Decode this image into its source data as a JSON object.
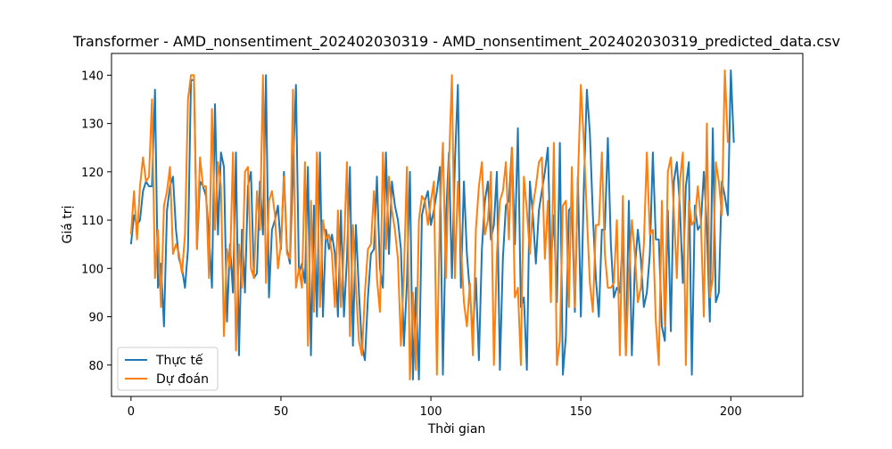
{
  "chart_data": {
    "type": "line",
    "title": "Transformer - AMD_nonsentiment_202402030319 - AMD_nonsentiment_202402030319_predicted_data.csv",
    "xlabel": "Thời gian",
    "ylabel": "Giá trị",
    "xlim": [
      -6.5,
      224
    ],
    "ylim": [
      73.5,
      144.5
    ],
    "xticks": [
      0,
      50,
      100,
      150,
      200
    ],
    "yticks": [
      80,
      90,
      100,
      110,
      120,
      130,
      140
    ],
    "grid": false,
    "legend_position": "bottom-left",
    "series": [
      {
        "name": "Thực tế",
        "color": "#1f77b4",
        "values": [
          105,
          111,
          109,
          110,
          116,
          118,
          117,
          117,
          137,
          96,
          101,
          88,
          112,
          117,
          119,
          108,
          102,
          100,
          96,
          104,
          139,
          139,
          104,
          118,
          117,
          115,
          107,
          96,
          134,
          107,
          124,
          121,
          89,
          105,
          95,
          124,
          82,
          108,
          95,
          117,
          120,
          98,
          99,
          118,
          107,
          140,
          94,
          108,
          110,
          113,
          104,
          120,
          104,
          101,
          120,
          138,
          99,
          101,
          97,
          121,
          82,
          113,
          90,
          124,
          90,
          108,
          104,
          107,
          103,
          90,
          112,
          90,
          102,
          121,
          84,
          109,
          95,
          84,
          81,
          94,
          103,
          104,
          119,
          100,
          96,
          124,
          103,
          118,
          113,
          110,
          104,
          84,
          97,
          120,
          77,
          96,
          77,
          111,
          114,
          116,
          109,
          112,
          116,
          121,
          78,
          110,
          124,
          98,
          122,
          138,
          96,
          118,
          103,
          95,
          86,
          98,
          81,
          104,
          114,
          118,
          106,
          109,
          120,
          79,
          102,
          113,
          114,
          125,
          105,
          129,
          92,
          94,
          79,
          118,
          111,
          101,
          112,
          116,
          120,
          125,
          101,
          111,
          93,
          126,
          78,
          86,
          112,
          113,
          91,
          119,
          90,
          117,
          137,
          128,
          111,
          98,
          90,
          108,
          108,
          127,
          105,
          94,
          96,
          95,
          107,
          82,
          114,
          82,
          100,
          108,
          102,
          92,
          95,
          103,
          124,
          106,
          106,
          88,
          85,
          112,
          87,
          118,
          122,
          113,
          97,
          117,
          122,
          78,
          113,
          108,
          109,
          120,
          109,
          89,
          129,
          93,
          95,
          118,
          115,
          111,
          141,
          126
        ]
      },
      {
        "name": "Dự đoán",
        "color": "#ff7f0e",
        "values": [
          107,
          116,
          106,
          117,
          123,
          118,
          119,
          135,
          98,
          108,
          92,
          113,
          116,
          121,
          103,
          105,
          103,
          99,
          107,
          135,
          140,
          140,
          104,
          123,
          117,
          117,
          98,
          133,
          108,
          122,
          117,
          86,
          104,
          100,
          124,
          83,
          105,
          96,
          120,
          121,
          100,
          98,
          116,
          108,
          140,
          97,
          114,
          116,
          111,
          100,
          105,
          119,
          103,
          102,
          137,
          96,
          100,
          96,
          122,
          84,
          114,
          91,
          124,
          92,
          110,
          106,
          107,
          103,
          92,
          112,
          92,
          104,
          122,
          86,
          109,
          96,
          85,
          82,
          95,
          104,
          105,
          116,
          98,
          91,
          124,
          104,
          119,
          112,
          108,
          102,
          84,
          99,
          121,
          77,
          95,
          79,
          110,
          115,
          114,
          109,
          114,
          118,
          78,
          112,
          126,
          98,
          121,
          140,
          98,
          118,
          105,
          93,
          88,
          97,
          82,
          108,
          117,
          122,
          107,
          110,
          120,
          80,
          103,
          114,
          116,
          122,
          106,
          125,
          94,
          96,
          80,
          119,
          112,
          103,
          113,
          117,
          122,
          123,
          102,
          114,
          93,
          126,
          80,
          85,
          113,
          114,
          92,
          121,
          92,
          118,
          138,
          126,
          111,
          97,
          91,
          109,
          109,
          124,
          103,
          96,
          96,
          97,
          110,
          82,
          115,
          82,
          98,
          110,
          103,
          93,
          96,
          105,
          124,
          107,
          108,
          89,
          80,
          114,
          88,
          120,
          123,
          112,
          98,
          118,
          124,
          80,
          114,
          109,
          110,
          117,
          110,
          90,
          130,
          94,
          98,
          122,
          118,
          111,
          141,
          126
        ]
      }
    ]
  }
}
